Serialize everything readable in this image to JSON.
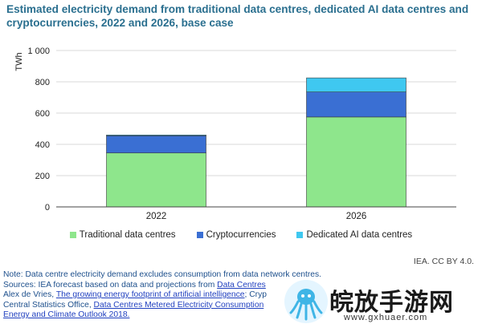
{
  "chart_data": {
    "type": "bar",
    "stacked": true,
    "title": "Estimated electricity demand from traditional data centres, dedicated AI data centres and cryptocurrencies, 2022 and 2026, base case",
    "ylabel": "TWh",
    "xlabel": "",
    "ylim": [
      0,
      1000
    ],
    "y_ticks": [
      0,
      200,
      400,
      600,
      800,
      1000
    ],
    "y_tick_labels": [
      "0",
      "200",
      "400",
      "600",
      "800",
      "1 000"
    ],
    "categories": [
      "2022",
      "2026"
    ],
    "series": [
      {
        "name": "Traditional data centres",
        "color": "#8ee68c",
        "values": [
          345,
          575
        ]
      },
      {
        "name": "Cryptocurrencies",
        "color": "#3a6fd3",
        "values": [
          110,
          160
        ]
      },
      {
        "name": "Dedicated AI data centres",
        "color": "#3fc8f0",
        "values": [
          5,
          90
        ]
      }
    ],
    "grid": true,
    "legend_position": "bottom"
  },
  "credit": "IEA. CC BY 4.0.",
  "notes": {
    "note": "Note: Data centre electricity demand excludes consumption from data network centres.",
    "sources_prefix": "Sources: IEA forecast based on data and projections from ",
    "link_data_centres": "Data Centres",
    "line2_prefix": "Alex de Vries, ",
    "link_ai_footprint": "The growing energy footprint of artificial intelligence",
    "line2_suffix": "; Cryp",
    "line3_prefix": "Central Statistics Office, ",
    "link_cso": "Data Centres Metered Electricity Consumption",
    "link_weo": "Energy and Climate Outlook 2018."
  },
  "watermark": {
    "text": "皖放手游网",
    "url": "www.gxhuaer.com"
  }
}
